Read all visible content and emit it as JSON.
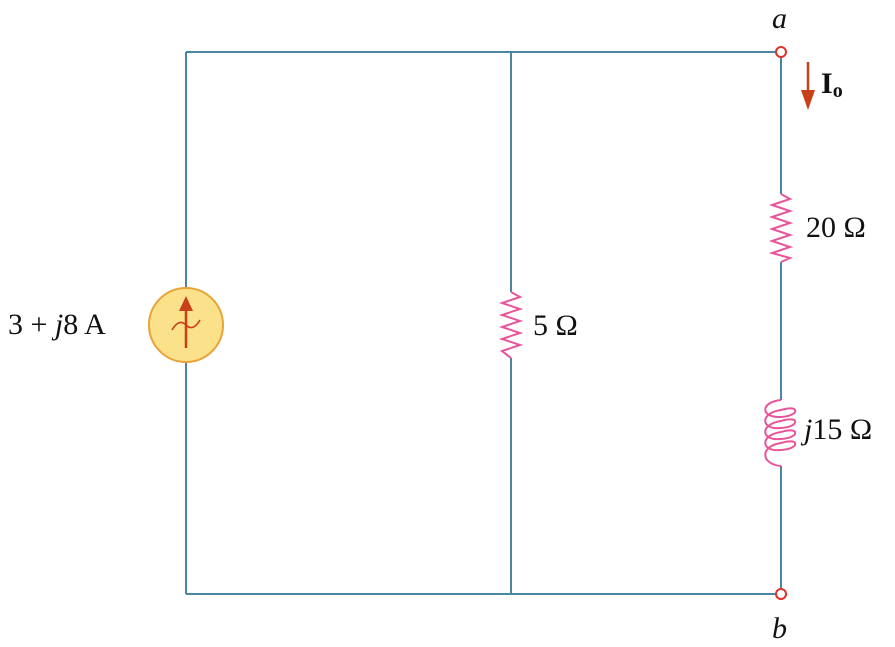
{
  "source": {
    "prefix": "3 + ",
    "j": "j",
    "suffix": "8 A"
  },
  "r_middle": "5 Ω",
  "r_series": "20 Ω",
  "inductor": {
    "j": "j",
    "value": "15 Ω"
  },
  "node_a": "a",
  "node_b": "b",
  "current": {
    "main": "I",
    "sub": "o"
  },
  "colors": {
    "wire": "#4a86a3",
    "element": "#e8549a",
    "node": "#e0302a",
    "arrow": "#c8401a",
    "source_fill": "#fbe28a",
    "source_stroke": "#e8a33a"
  }
}
